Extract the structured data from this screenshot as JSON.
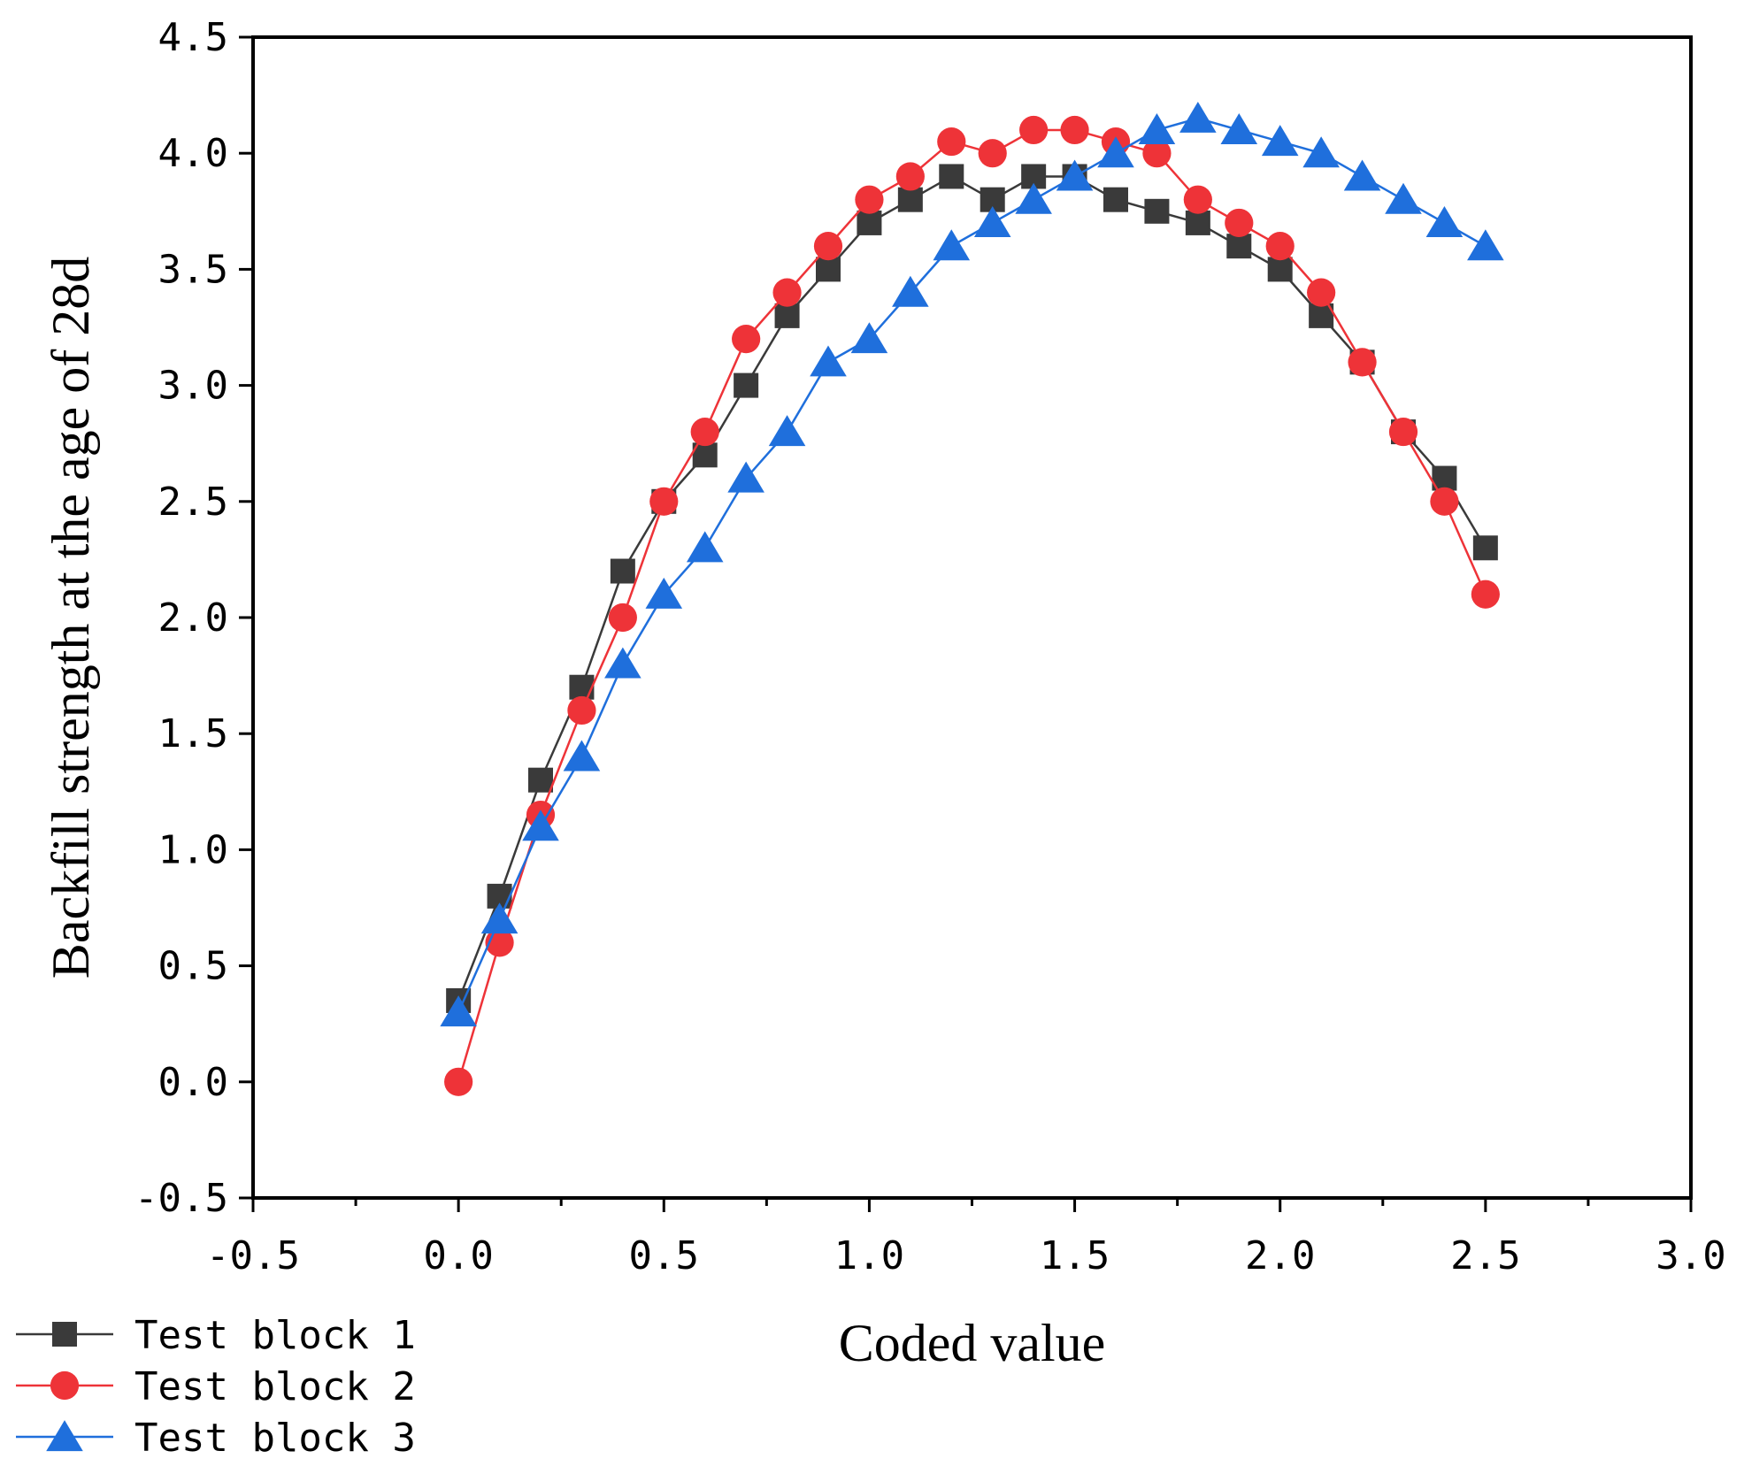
{
  "chart_data": {
    "type": "line",
    "title": "",
    "xlabel": "Coded value",
    "ylabel": "Backfill strength at the age of 28d",
    "xlim": [
      -0.5,
      3.0
    ],
    "ylim": [
      -0.5,
      4.5
    ],
    "xticks": [
      -0.5,
      0.0,
      0.5,
      1.0,
      1.5,
      2.0,
      2.5,
      3.0
    ],
    "yticks": [
      -0.5,
      0.0,
      0.5,
      1.0,
      1.5,
      2.0,
      2.5,
      3.0,
      3.5,
      4.0,
      4.5
    ],
    "xtick_labels": [
      "-0.5",
      "0.0",
      "0.5",
      "1.0",
      "1.5",
      "2.0",
      "2.5",
      "3.0"
    ],
    "ytick_labels": [
      "-0.5",
      "0.0",
      "0.5",
      "1.0",
      "1.5",
      "2.0",
      "2.5",
      "3.0",
      "3.5",
      "4.0",
      "4.5"
    ],
    "grid": false,
    "legend_position": "bottom-left, outside",
    "x": [
      0.0,
      0.1,
      0.2,
      0.3,
      0.4,
      0.5,
      0.6,
      0.7,
      0.8,
      0.9,
      1.0,
      1.1,
      1.2,
      1.3,
      1.4,
      1.5,
      1.6,
      1.7,
      1.8,
      1.9,
      2.0,
      2.1,
      2.2,
      2.3,
      2.4,
      2.5
    ],
    "series": [
      {
        "name": "Test block 1",
        "marker": "square",
        "color": "#3a3a3a",
        "values": [
          0.35,
          0.8,
          1.3,
          1.7,
          2.2,
          2.5,
          2.7,
          3.0,
          3.3,
          3.5,
          3.7,
          3.8,
          3.9,
          3.8,
          3.9,
          3.9,
          3.8,
          3.75,
          3.7,
          3.6,
          3.5,
          3.3,
          3.1,
          2.8,
          2.6,
          2.3
        ]
      },
      {
        "name": "Test block 2",
        "marker": "circle",
        "color": "#ee3338",
        "values": [
          0.0,
          0.6,
          1.15,
          1.6,
          2.0,
          2.5,
          2.8,
          3.2,
          3.4,
          3.6,
          3.8,
          3.9,
          4.05,
          4.0,
          4.1,
          4.1,
          4.05,
          4.0,
          3.8,
          3.7,
          3.6,
          3.4,
          3.1,
          2.8,
          2.5,
          2.1
        ]
      },
      {
        "name": "Test block 3",
        "marker": "triangle",
        "color": "#1f6fdc",
        "values": [
          0.3,
          0.7,
          1.1,
          1.4,
          1.8,
          2.1,
          2.3,
          2.6,
          2.8,
          3.1,
          3.2,
          3.4,
          3.6,
          3.7,
          3.8,
          3.9,
          4.0,
          4.1,
          4.15,
          4.1,
          4.05,
          4.0,
          3.9,
          3.8,
          3.7,
          3.6
        ]
      }
    ]
  }
}
